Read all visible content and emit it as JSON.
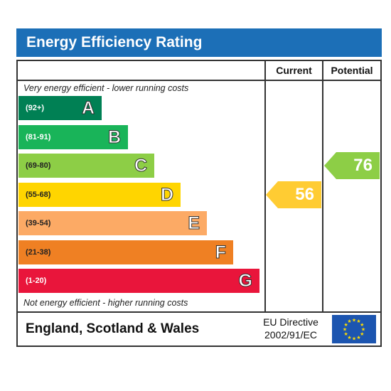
{
  "title": "Energy Efficiency Rating",
  "columns": {
    "current": "Current",
    "potential": "Potential"
  },
  "top_caption": "Very energy efficient - lower running costs",
  "bottom_caption": "Not energy efficient - higher running costs",
  "chart_data": {
    "type": "bar",
    "title": "Energy Efficiency Rating",
    "bands": [
      {
        "range": "(92+)",
        "letter": "A",
        "color": "#008054",
        "range_color": "#ffffff"
      },
      {
        "range": "(81-91)",
        "letter": "B",
        "color": "#19b459",
        "range_color": "#ffffff"
      },
      {
        "range": "(69-80)",
        "letter": "C",
        "color": "#8dce46",
        "range_color": "#222222"
      },
      {
        "range": "(55-68)",
        "letter": "D",
        "color": "#ffd500",
        "range_color": "#222222"
      },
      {
        "range": "(39-54)",
        "letter": "E",
        "color": "#fcaa65",
        "range_color": "#222222"
      },
      {
        "range": "(21-38)",
        "letter": "F",
        "color": "#ef8023",
        "range_color": "#222222"
      },
      {
        "range": "(1-20)",
        "letter": "G",
        "color": "#e9153b",
        "range_color": "#ffffff"
      }
    ],
    "current": {
      "value": 56,
      "band": "D",
      "color": "#ffcc33"
    },
    "potential": {
      "value": 76,
      "band": "C",
      "color": "#8dce46"
    }
  },
  "footer": {
    "region": "England, Scotland & Wales",
    "directive_line1": "EU Directive",
    "directive_line2": "2002/91/EC",
    "flag_color": "#1c55b0",
    "star_color": "#ffdd00"
  }
}
